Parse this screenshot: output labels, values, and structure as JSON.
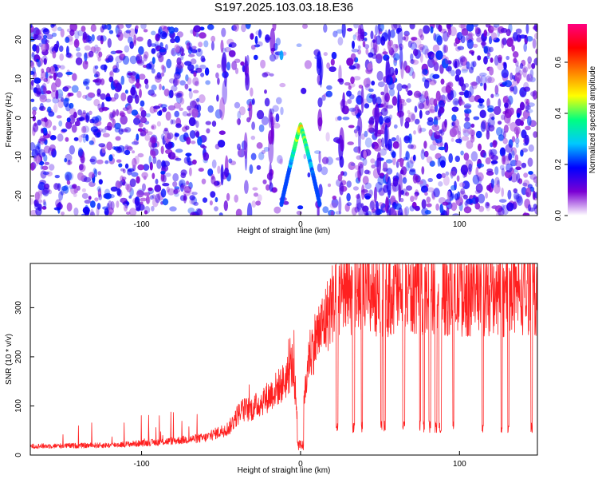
{
  "title": "S197.2025.103.03.18.E36",
  "chart_data": [
    {
      "type": "heatmap",
      "title": "S197.2025.103.03.18.E36",
      "xlabel": "Height of straight line (km)",
      "ylabel": "Frequency (Hz)",
      "xlim": [
        -170,
        149
      ],
      "ylim": [
        -25,
        24
      ],
      "xticks": [
        -100,
        0,
        100
      ],
      "yticks": [
        -20,
        -10,
        0,
        10,
        20
      ],
      "colorbar": {
        "label": "Normalized spectral amplitude",
        "range": [
          0.0,
          0.75
        ],
        "ticks": [
          0.0,
          0.2,
          0.4,
          0.6
        ],
        "colormap": [
          "#ffffff",
          "#7b00d4",
          "#0000ff",
          "#00c8ff",
          "#00ff80",
          "#ffff00",
          "#ff8000",
          "#ff0000",
          "#ff0080"
        ]
      },
      "features": {
        "ridge_curve_amplitude_peak": 0.55,
        "background_amplitude": 0.1
      }
    },
    {
      "type": "line",
      "xlabel": "Height of straight line (km)",
      "ylabel": "SNR (10 * v/v)",
      "xlim": [
        -170,
        149
      ],
      "ylim": [
        0,
        390
      ],
      "xticks": [
        -100,
        0,
        100
      ],
      "yticks": [
        0,
        100,
        200,
        300
      ],
      "color": "#ff2020",
      "envelope": {
        "x": [
          -170,
          -120,
          -90,
          -60,
          -45,
          -38,
          -30,
          -20,
          -10,
          -5,
          0,
          5,
          10,
          15,
          20,
          25,
          40,
          60,
          80,
          100,
          120,
          149
        ],
        "y": [
          18,
          20,
          26,
          35,
          55,
          90,
          95,
          120,
          150,
          185,
          20,
          200,
          240,
          270,
          310,
          330,
          335,
          330,
          335,
          330,
          330,
          335
        ]
      }
    }
  ]
}
